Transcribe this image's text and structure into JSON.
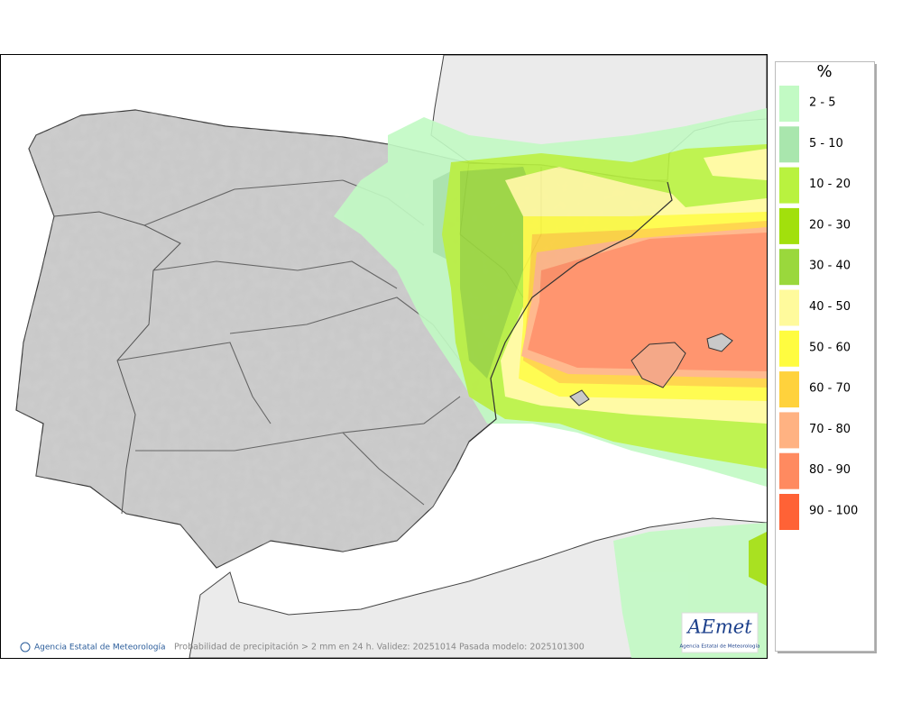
{
  "map": {
    "legend": {
      "title": "%",
      "items": [
        {
          "label": "2 - 5",
          "color": "#c2fac4"
        },
        {
          "label": "5 - 10",
          "color": "#a9e6ad"
        },
        {
          "label": "10 - 20",
          "color": "#b9f23f"
        },
        {
          "label": "20 - 30",
          "color": "#a2e00c"
        },
        {
          "label": "30 - 40",
          "color": "#9ad83c"
        },
        {
          "label": "40 - 50",
          "color": "#fffa9c"
        },
        {
          "label": "50 - 60",
          "color": "#fffc40"
        },
        {
          "label": "60 - 70",
          "color": "#ffd23c"
        },
        {
          "label": "70 - 80",
          "color": "#ffb282"
        },
        {
          "label": "80 - 90",
          "color": "#ff8a60"
        },
        {
          "label": "90 - 100",
          "color": "#ff6236"
        }
      ]
    },
    "footer": {
      "credit": "Agencia Estatal de Meteorología",
      "caption": "Probabilidad de precipitación > 2 mm en 24 h. Validez: 20251014 Pasada modelo: 2025101300"
    },
    "logo": {
      "text": "AEmet",
      "subtitle": "Agencia Estatal de Meteorología"
    }
  }
}
